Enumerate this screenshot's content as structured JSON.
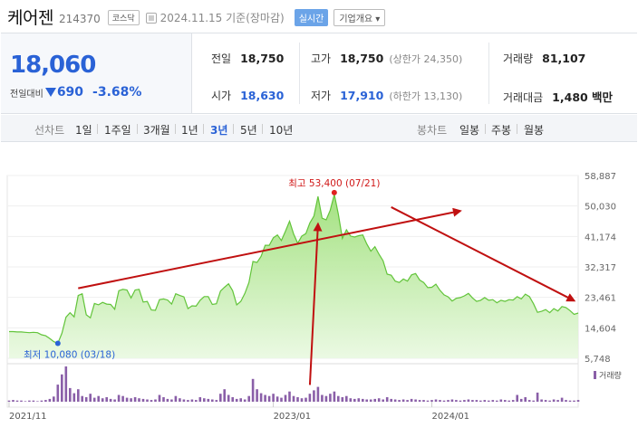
{
  "header": {
    "name": "케어젠",
    "code": "214370",
    "market": "코스닥",
    "date": "2024.11.15 기준(장마감)",
    "realtime": "실시간",
    "company_info": "기업개요 ▾"
  },
  "quote": {
    "price": "18,060",
    "change_label": "전일대비",
    "change": "690",
    "change_pct": "-3.68%"
  },
  "stats": {
    "prev_label": "전일",
    "prev": "18,750",
    "high_label": "고가",
    "high": "18,750",
    "upper_limit": "(상한가 24,350)",
    "volume_label": "거래량",
    "volume": "81,107",
    "open_label": "시가",
    "open": "18,630",
    "low_label": "저가",
    "low": "17,910",
    "lower_limit": "(하한가 13,130)",
    "amount_label": "거래대금",
    "amount": "1,480 백만"
  },
  "tabs": {
    "line_label": "선차트",
    "line_periods": [
      "1일",
      "1주일",
      "3개월",
      "1년",
      "3년",
      "5년",
      "10년"
    ],
    "candle_label": "봉차트",
    "candle_periods": [
      "일봉",
      "주봉",
      "월봉"
    ],
    "active": "3년"
  },
  "chart_data": {
    "type": "area",
    "x_ticks": [
      "2021/11",
      "2023/01",
      "2024/01"
    ],
    "y_ticks": [
      58887,
      50030,
      41174,
      32317,
      23461,
      14604,
      5748
    ],
    "ylim": [
      5748,
      58887
    ],
    "max_label": "최고 53,400 (07/21)",
    "min_label": "최저 10,080 (03/18)",
    "volume_label": "거래량",
    "series": [
      {
        "values": [
          13500,
          13500,
          13400,
          13400,
          13300,
          13200,
          13300,
          13200,
          12600,
          12300,
          11500,
          10600,
          10080,
          13000,
          17700,
          19000,
          17800,
          24000,
          24500,
          18400,
          17500,
          21700,
          21300,
          22000,
          21500,
          21400,
          20000,
          25400,
          25800,
          25600,
          23300,
          25600,
          25800,
          22100,
          22300,
          19800,
          19700,
          22800,
          23000,
          22700,
          21500,
          24500,
          24000,
          23600,
          20200,
          21000,
          20900,
          22600,
          23700,
          23700,
          21400,
          21600,
          25300,
          26400,
          27400,
          25400,
          21300,
          22300,
          24600,
          27800,
          33900,
          33600,
          35400,
          38600,
          38600,
          40800,
          41600,
          40000,
          42700,
          45600,
          41900,
          39200,
          41300,
          42000,
          45100,
          47100,
          52800,
          46500,
          46000,
          48800,
          53400,
          47700,
          40600,
          43100,
          41300,
          41000,
          41400,
          41600,
          39000,
          36900,
          38200,
          36000,
          34100,
          30200,
          29900,
          28200,
          27800,
          28800,
          28200,
          30000,
          30400,
          28500,
          27800,
          26300,
          26400,
          27300,
          25500,
          24200,
          23600,
          22400,
          23200,
          23400,
          23900,
          24600,
          23300,
          22300,
          22600,
          23400,
          22600,
          22800,
          21900,
          22600,
          22300,
          22800,
          22700,
          23700,
          23000,
          24400,
          23700,
          21600,
          19100,
          19400,
          19900,
          19000,
          20200,
          19500,
          20800,
          20500,
          19600,
          18500,
          18900
        ]
      }
    ],
    "volume": [
      2,
      3,
      2,
      2,
      1,
      2,
      2,
      1,
      2,
      3,
      5,
      9,
      30,
      48,
      62,
      24,
      15,
      22,
      10,
      8,
      14,
      7,
      10,
      6,
      8,
      5,
      4,
      12,
      10,
      7,
      6,
      8,
      6,
      5,
      4,
      3,
      4,
      12,
      8,
      5,
      4,
      10,
      6,
      4,
      3,
      4,
      3,
      8,
      6,
      5,
      4,
      3,
      14,
      22,
      12,
      8,
      5,
      6,
      4,
      10,
      40,
      22,
      15,
      12,
      10,
      14,
      9,
      7,
      12,
      18,
      10,
      8,
      6,
      7,
      14,
      20,
      26,
      12,
      10,
      14,
      18,
      10,
      8,
      10,
      6,
      5,
      6,
      5,
      4,
      4,
      5,
      6,
      4,
      8,
      5,
      4,
      3,
      4,
      3,
      5,
      4,
      3,
      3,
      2,
      3,
      4,
      3,
      2,
      3,
      4,
      3,
      2,
      3,
      4,
      3,
      3,
      2,
      3,
      2,
      3,
      2,
      4,
      3,
      2,
      3,
      12,
      5,
      8,
      3,
      2,
      16,
      4,
      3,
      2,
      4,
      3,
      7,
      3,
      2,
      2,
      3
    ],
    "annotations": [
      {
        "type": "arrow",
        "from": [
          17,
          26100
        ],
        "to": [
          111,
          48600
        ],
        "color": "#c01010"
      },
      {
        "type": "arrow",
        "from": [
          74,
          -2000
        ],
        "to": [
          76,
          44800
        ],
        "color": "#c01010"
      },
      {
        "type": "arrow",
        "from": [
          94,
          49700
        ],
        "to": [
          139,
          22500
        ],
        "color": "#c01010"
      }
    ]
  }
}
